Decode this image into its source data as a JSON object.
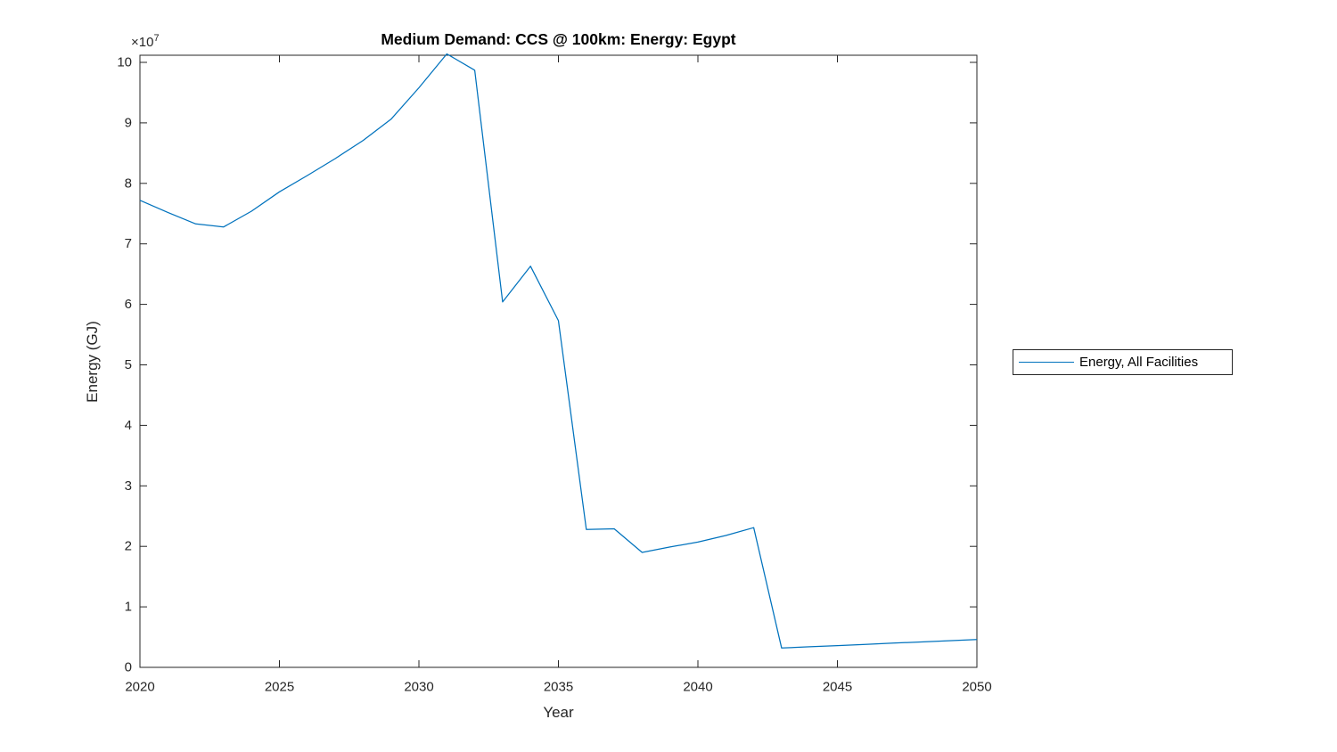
{
  "figure": {
    "background": "#ffffff"
  },
  "colors": {
    "axis": "#262626",
    "tick_label": "#262626",
    "title": "#000000",
    "series_line": "#0072BD",
    "legend_border": "#262626",
    "legend_background": "#ffffff"
  },
  "axis_offset": {
    "base": "×10",
    "exponent": "7"
  },
  "legend": {
    "entries": [
      {
        "label": "Energy, All Facilities",
        "color": "#0072BD"
      }
    ],
    "position": "right-outside"
  },
  "chart_data": {
    "type": "line",
    "title": "Medium Demand: CCS @ 100km: Energy: Egypt",
    "xlabel": "Year",
    "ylabel": "Energy (GJ)",
    "y_unit": "GJ",
    "y_value_scale": "values given in units of 1e7 GJ (axis shows ×10^7)",
    "grid": false,
    "xlim": [
      2020,
      2050
    ],
    "ylim_e7": [
      0,
      10.12
    ],
    "x_ticks": [
      2020,
      2025,
      2030,
      2035,
      2040,
      2045,
      2050
    ],
    "y_ticks": [
      0,
      1,
      2,
      3,
      4,
      5,
      6,
      7,
      8,
      9,
      10
    ],
    "x": [
      2020,
      2021,
      2022,
      2023,
      2024,
      2025,
      2026,
      2027,
      2028,
      2029,
      2030,
      2031,
      2032,
      2033,
      2034,
      2035,
      2036,
      2037,
      2038,
      2039,
      2040,
      2041,
      2042,
      2043,
      2044,
      2045,
      2046,
      2047,
      2048,
      2049,
      2050
    ],
    "series": [
      {
        "name": "Energy, All Facilities",
        "color": "#0072BD",
        "values_e7": [
          7.72,
          7.52,
          7.33,
          7.28,
          7.54,
          7.86,
          8.13,
          8.41,
          8.71,
          9.06,
          9.58,
          10.14,
          9.87,
          6.04,
          6.63,
          5.73,
          2.28,
          2.29,
          1.9,
          1.99,
          2.07,
          2.18,
          2.31,
          0.32,
          0.34,
          0.36,
          0.38,
          0.4,
          0.42,
          0.44,
          0.46
        ]
      }
    ]
  }
}
